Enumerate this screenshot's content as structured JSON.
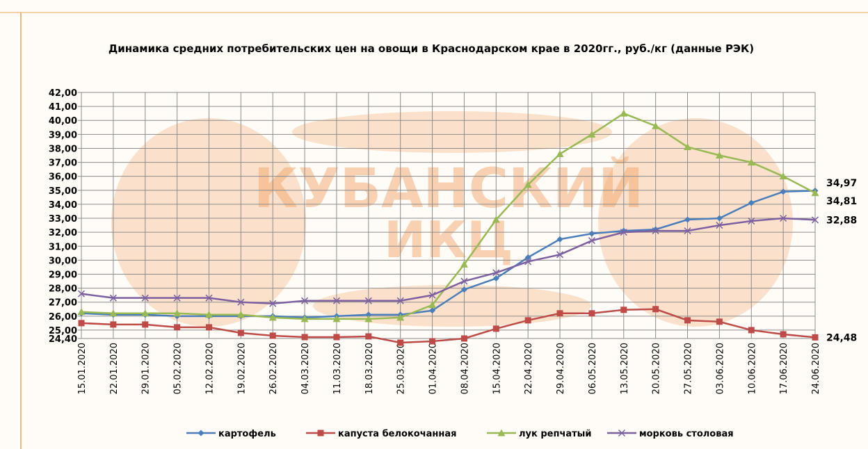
{
  "chart_data": {
    "type": "line",
    "title": "Динамика  средних потребительских цен на овощи в Краснодарском крае в 2020гг., руб./кг (данные РЭК)",
    "watermark_lines": [
      "КУБАНСКИЙ",
      "ИКЦ"
    ],
    "categories": [
      "15.01.2020",
      "22.01.2020",
      "29.01.2020",
      "05.02.2020",
      "12.02.2020",
      "19.02.2020",
      "26.02.2020",
      "04.03.2020",
      "11.03.2020",
      "18.03.2020",
      "25.03.2020",
      "01.04.2020",
      "08.04.2020",
      "15.04.2020",
      "22.04.2020",
      "29.04.2020",
      "06.05.2020",
      "13.05.2020",
      "20.05.2020",
      "27.05.2020",
      "03.06.2020",
      "10.06.2020",
      "17.06.2020",
      "24.06.2020"
    ],
    "ylim": [
      24.4,
      42
    ],
    "yticks": [
      {
        "value": 24.4,
        "label": "24,40"
      },
      {
        "value": 25,
        "label": "25,00"
      },
      {
        "value": 26,
        "label": "26,00"
      },
      {
        "value": 27,
        "label": "27,00"
      },
      {
        "value": 28,
        "label": "28,00"
      },
      {
        "value": 29,
        "label": "29,00"
      },
      {
        "value": 30,
        "label": "30,00"
      },
      {
        "value": 31,
        "label": "31,00"
      },
      {
        "value": 32,
        "label": "32,00"
      },
      {
        "value": 33,
        "label": "33,00"
      },
      {
        "value": 34,
        "label": "34,00"
      },
      {
        "value": 35,
        "label": "35,00"
      },
      {
        "value": 36,
        "label": "36,00"
      },
      {
        "value": 37,
        "label": "37,00"
      },
      {
        "value": 38,
        "label": "38,00"
      },
      {
        "value": 39,
        "label": "39,00"
      },
      {
        "value": 40,
        "label": "40,00"
      },
      {
        "value": 41,
        "label": "41,00"
      },
      {
        "value": 42,
        "label": "42,00"
      }
    ],
    "grid": true,
    "legend": "bottom",
    "series": [
      {
        "name": "картофель",
        "color": "#4a7ebb",
        "marker": "diamond",
        "values": [
          26.2,
          26.1,
          26.1,
          26.0,
          26.0,
          26.0,
          26.0,
          25.9,
          26.0,
          26.1,
          26.1,
          26.4,
          27.9,
          28.7,
          30.2,
          31.5,
          31.9,
          32.1,
          32.2,
          32.9,
          33.0,
          34.1,
          34.9,
          34.97
        ],
        "value_labels": [
          null,
          null,
          null,
          null,
          null,
          null,
          null,
          null,
          null,
          null,
          null,
          null,
          null,
          null,
          null,
          null,
          null,
          null,
          null,
          null,
          null,
          null,
          null,
          "34,97"
        ]
      },
      {
        "name": "капуста белокочанная",
        "color": "#be4b48",
        "marker": "square",
        "values": [
          25.5,
          25.4,
          25.4,
          25.2,
          25.2,
          24.8,
          24.6,
          24.5,
          24.5,
          24.55,
          24.1,
          24.2,
          24.4,
          25.1,
          25.7,
          26.2,
          26.2,
          26.45,
          26.5,
          25.7,
          25.6,
          25.0,
          24.7,
          24.48
        ],
        "value_labels": [
          null,
          null,
          null,
          null,
          null,
          null,
          null,
          null,
          null,
          null,
          null,
          null,
          null,
          null,
          null,
          null,
          null,
          null,
          null,
          null,
          null,
          null,
          null,
          "24,48"
        ]
      },
      {
        "name": "лук репчатый",
        "color": "#98b954",
        "marker": "triangle",
        "values": [
          26.3,
          26.2,
          26.2,
          26.2,
          26.1,
          26.1,
          25.9,
          25.8,
          25.8,
          25.8,
          25.9,
          26.8,
          29.7,
          32.9,
          35.4,
          37.6,
          39.0,
          40.5,
          39.6,
          38.1,
          37.5,
          37.0,
          36.0,
          34.81
        ],
        "value_labels": [
          null,
          null,
          null,
          null,
          null,
          null,
          null,
          null,
          null,
          null,
          null,
          null,
          null,
          null,
          null,
          null,
          null,
          null,
          null,
          null,
          null,
          null,
          null,
          "34,81"
        ]
      },
      {
        "name": "морковь столовая",
        "color": "#7d60a0",
        "marker": "cross",
        "values": [
          27.6,
          27.3,
          27.3,
          27.3,
          27.3,
          27.0,
          26.9,
          27.1,
          27.1,
          27.1,
          27.1,
          27.5,
          28.5,
          29.1,
          29.9,
          30.4,
          31.4,
          32.0,
          32.1,
          32.1,
          32.5,
          32.8,
          33.0,
          32.88
        ],
        "value_labels": [
          null,
          null,
          null,
          null,
          null,
          null,
          null,
          null,
          null,
          null,
          null,
          null,
          null,
          null,
          null,
          null,
          null,
          null,
          null,
          null,
          null,
          null,
          null,
          "32,88"
        ]
      }
    ]
  }
}
